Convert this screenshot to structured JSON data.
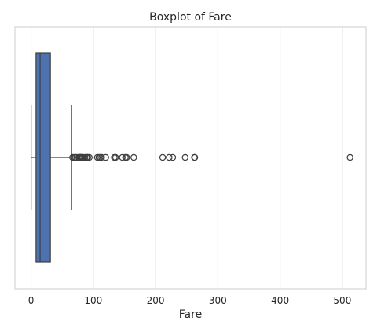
{
  "chart_data": {
    "type": "boxplot",
    "orientation": "horizontal",
    "title": "Boxplot of Fare",
    "xlabel": "Fare",
    "ylabel": "",
    "xlim": [
      -26,
      538
    ],
    "x_ticks": [
      0,
      100,
      200,
      300,
      400,
      500
    ],
    "grid": {
      "x": true,
      "y": false
    },
    "box": {
      "whisker_low": 0,
      "q1": 7.91,
      "median": 14.45,
      "q3": 31,
      "whisker_high": 65
    },
    "outliers": [
      66.6,
      69.55,
      71.28,
      73.5,
      76.73,
      77.29,
      77.96,
      79.2,
      79.65,
      80,
      81.86,
      82.17,
      83.16,
      86.5,
      89.1,
      90,
      91.08,
      93.5,
      106.43,
      108.9,
      110.88,
      113.28,
      120,
      133.65,
      135.63,
      146.52,
      151.55,
      153.46,
      164.87,
      211.34,
      221.78,
      227.53,
      247.52,
      262.38,
      263,
      512.33
    ],
    "colors": {
      "box_fill": "#4c72b0",
      "line": "#3f3f3f",
      "grid": "#d9d9d9",
      "frame": "#cccccc"
    }
  }
}
